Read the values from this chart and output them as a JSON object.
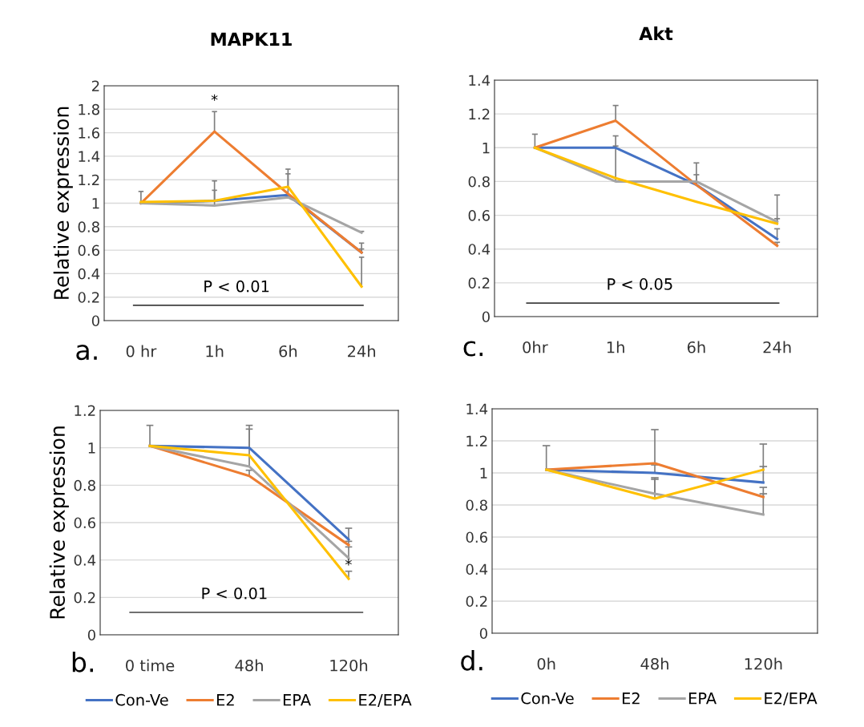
{
  "chart_data": [
    {
      "type": "line",
      "title": "MAPK11",
      "ylabel": "Relative expression",
      "categories": [
        "0 hr",
        "1h",
        "6h",
        "24h"
      ],
      "ylim": [
        0,
        2
      ],
      "yticks": [
        0,
        0.2,
        0.4,
        0.6,
        0.8,
        1,
        1.2,
        1.4,
        1.6,
        1.8,
        2
      ],
      "grid": "y",
      "series": [
        {
          "color": "#4472c4",
          "values": [
            1.0,
            1.02,
            1.07,
            0.58
          ],
          "errors": [
            [
              1.0,
              1.1
            ],
            [
              1.02,
              1.19
            ],
            [
              1.07,
              1.25
            ],
            [
              0.58,
              0.66
            ]
          ]
        },
        {
          "color": "#ed7d31",
          "values": [
            1.0,
            1.61,
            1.08,
            0.58
          ],
          "errors": [
            null,
            [
              1.61,
              1.78
            ],
            null,
            [
              0.58,
              0.61
            ]
          ]
        },
        {
          "color": "#a5a5a5",
          "values": [
            1.0,
            0.98,
            1.05,
            0.75
          ],
          "errors": [
            null,
            [
              0.98,
              1.11
            ],
            null,
            [
              0.75,
              0.76
            ]
          ]
        },
        {
          "color": "#ffc000",
          "values": [
            1.01,
            1.02,
            1.14,
            0.29
          ],
          "errors": [
            null,
            null,
            [
              1.14,
              1.29
            ],
            [
              0.29,
              0.54
            ]
          ]
        }
      ],
      "ref_lines": [
        {
          "axis": "y",
          "value": 0.13,
          "label": "P < 0.01",
          "color": "#404040"
        }
      ],
      "annotations": [
        "a.",
        "*"
      ]
    },
    {
      "type": "line",
      "title": "Akt",
      "categories": [
        "0hr",
        "1h",
        "6h",
        "24h"
      ],
      "ylim": [
        0,
        1.4
      ],
      "yticks": [
        0,
        0.2,
        0.4,
        0.6,
        0.8,
        1,
        1.2,
        1.4
      ],
      "grid": "y",
      "series": [
        {
          "color": "#4472c4",
          "values": [
            1.0,
            1.0,
            0.78,
            0.46
          ],
          "errors": [
            [
              1.0,
              1.08
            ],
            [
              1.0,
              1.07
            ],
            [
              0.78,
              0.91
            ],
            [
              0.46,
              0.52
            ]
          ]
        },
        {
          "color": "#ed7d31",
          "values": [
            1.0,
            1.16,
            0.78,
            0.42
          ],
          "errors": [
            null,
            [
              1.16,
              1.25
            ],
            [
              0.78,
              0.84
            ],
            [
              0.42,
              0.44
            ]
          ]
        },
        {
          "color": "#a5a5a5",
          "values": [
            1.0,
            0.8,
            0.8,
            0.56
          ],
          "errors": [
            null,
            [
              0.8,
              1.01
            ],
            null,
            [
              0.56,
              0.72
            ]
          ]
        },
        {
          "color": "#ffc000",
          "values": [
            1.0,
            0.82,
            0.68,
            0.55
          ],
          "errors": [
            null,
            null,
            null,
            [
              0.55,
              0.58
            ]
          ]
        }
      ],
      "ref_lines": [
        {
          "axis": "y",
          "value": 0.08,
          "label": "P < 0.05",
          "color": "#404040"
        }
      ],
      "annotations": [
        "c."
      ]
    },
    {
      "type": "line",
      "ylabel": "Relative expression",
      "categories": [
        "0 time",
        "48h",
        "120h"
      ],
      "ylim": [
        0,
        1.2
      ],
      "yticks": [
        0,
        0.2,
        0.4,
        0.6,
        0.8,
        1,
        1.2
      ],
      "grid": "y",
      "legend": "bottom",
      "series": [
        {
          "name": "Con-Ve",
          "color": "#4472c4",
          "values": [
            1.01,
            1.0,
            0.51
          ],
          "errors": [
            [
              1.01,
              1.12
            ],
            [
              1.0,
              1.12
            ],
            [
              0.51,
              0.57
            ]
          ]
        },
        {
          "name": "E2",
          "color": "#ed7d31",
          "values": [
            1.01,
            0.85,
            0.48
          ],
          "errors": [
            null,
            [
              0.85,
              0.88
            ],
            [
              0.48,
              0.5
            ]
          ]
        },
        {
          "name": "EPA",
          "color": "#a5a5a5",
          "values": [
            1.01,
            0.9,
            0.41
          ],
          "errors": [
            null,
            [
              0.9,
              1.1
            ],
            [
              0.41,
              0.47
            ]
          ]
        },
        {
          "name": "E2/EPA",
          "color": "#ffc000",
          "values": [
            1.01,
            0.96,
            0.3
          ],
          "errors": [
            null,
            null,
            [
              0.3,
              0.34
            ]
          ]
        }
      ],
      "ref_lines": [
        {
          "axis": "y",
          "value": 0.12,
          "label": "P < 0.01",
          "color": "#404040"
        }
      ],
      "annotations": [
        "b.",
        "*"
      ]
    },
    {
      "type": "line",
      "categories": [
        "0h",
        "48h",
        "120h"
      ],
      "ylim": [
        0,
        1.4
      ],
      "yticks": [
        0,
        0.2,
        0.4,
        0.6,
        0.8,
        1,
        1.2,
        1.4
      ],
      "grid": "y",
      "legend": "bottom",
      "series": [
        {
          "name": "Con-Ve",
          "color": "#4472c4",
          "values": [
            1.02,
            1.0,
            0.94
          ],
          "errors": [
            [
              1.02,
              1.17
            ],
            [
              1.0,
              1.05
            ],
            [
              0.94,
              1.04
            ]
          ]
        },
        {
          "name": "E2",
          "color": "#ed7d31",
          "values": [
            1.02,
            1.06,
            0.85
          ],
          "errors": [
            null,
            [
              1.06,
              1.27
            ],
            [
              0.85,
              0.91
            ]
          ]
        },
        {
          "name": "EPA",
          "color": "#a5a5a5",
          "values": [
            1.02,
            0.87,
            0.74
          ],
          "errors": [
            null,
            [
              0.87,
              0.97
            ],
            [
              0.74,
              0.87
            ]
          ]
        },
        {
          "name": "E2/EPA",
          "color": "#ffc000",
          "values": [
            1.02,
            0.84,
            1.02
          ],
          "errors": [
            null,
            [
              0.84,
              0.96
            ],
            [
              1.02,
              1.18
            ]
          ]
        }
      ],
      "annotations": [
        "d."
      ]
    }
  ]
}
